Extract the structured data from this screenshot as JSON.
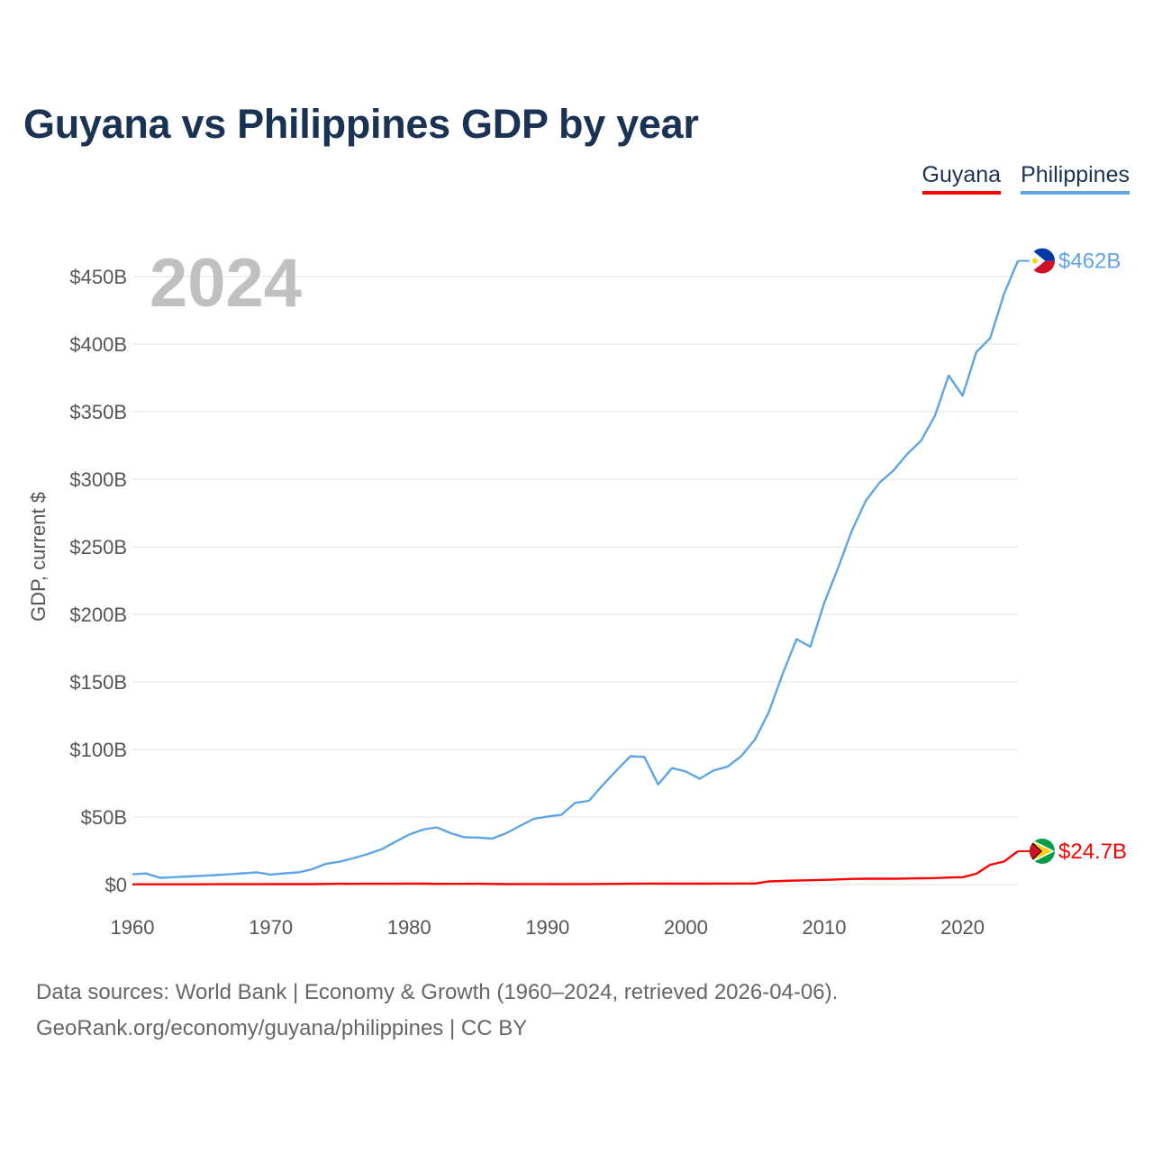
{
  "title": "Guyana vs Philippines GDP by year",
  "legend": [
    {
      "label": "Guyana",
      "color": "#ff0000"
    },
    {
      "label": "Philippines",
      "color": "#5ea4e6"
    }
  ],
  "source": {
    "line1": "Data sources: World Bank | Economy & Growth (1960–2024, retrieved 2026-04-06).",
    "line2": "GeoRank.org/economy/guyana/philippines | CC BY"
  },
  "chart_data": {
    "type": "line",
    "title": "Guyana vs Philippines GDP by year",
    "ylabel": "GDP, current $",
    "xlabel": "",
    "year_label": "2024",
    "xlim": [
      1960,
      2024
    ],
    "ylim": [
      0,
      450
    ],
    "x_ticks": [
      1960,
      1970,
      1980,
      1990,
      2000,
      2010,
      2020
    ],
    "y_ticks": [
      {
        "value": 0,
        "label": "$0"
      },
      {
        "value": 50,
        "label": "$50B"
      },
      {
        "value": 100,
        "label": "$100B"
      },
      {
        "value": 150,
        "label": "$150B"
      },
      {
        "value": 200,
        "label": "$200B"
      },
      {
        "value": 250,
        "label": "$250B"
      },
      {
        "value": 300,
        "label": "$300B"
      },
      {
        "value": 350,
        "label": "$350B"
      },
      {
        "value": 400,
        "label": "$400B"
      },
      {
        "value": 450,
        "label": "$450B"
      }
    ],
    "unit": "billions of current US$",
    "series": [
      {
        "name": "Philippines",
        "color": "#5ea4e6",
        "end_label": "$462B",
        "flag": "philippines",
        "x": [
          1960,
          1961,
          1962,
          1963,
          1964,
          1965,
          1966,
          1967,
          1968,
          1969,
          1970,
          1971,
          1972,
          1973,
          1974,
          1975,
          1976,
          1977,
          1978,
          1979,
          1980,
          1981,
          1982,
          1983,
          1984,
          1985,
          1986,
          1987,
          1988,
          1989,
          1990,
          1991,
          1992,
          1993,
          1994,
          1995,
          1996,
          1997,
          1998,
          1999,
          2000,
          2001,
          2002,
          2003,
          2004,
          2005,
          2006,
          2007,
          2008,
          2009,
          2010,
          2011,
          2012,
          2013,
          2014,
          2015,
          2016,
          2017,
          2018,
          2019,
          2020,
          2021,
          2022,
          2023,
          2024
        ],
        "values": [
          7.6,
          8.2,
          5.0,
          5.5,
          6.0,
          6.5,
          7.0,
          7.6,
          8.3,
          9.1,
          7.4,
          8.3,
          9.0,
          11.4,
          15.4,
          16.9,
          19.6,
          22.6,
          26.1,
          31.6,
          37.0,
          40.7,
          42.3,
          38.0,
          35.0,
          34.8,
          34.0,
          37.9,
          43.3,
          48.6,
          50.3,
          51.6,
          60.5,
          62.0,
          73.7,
          84.6,
          95.0,
          94.5,
          74.1,
          86.2,
          83.7,
          78.3,
          84.4,
          87.2,
          95.0,
          107.4,
          127.7,
          155.9,
          181.7,
          176.1,
          208.4,
          234.2,
          261.9,
          283.9,
          297.5,
          306.4,
          318.6,
          328.5,
          346.8,
          376.8,
          361.8,
          394.1,
          404.4,
          437.1,
          461.6
        ]
      },
      {
        "name": "Guyana",
        "color": "#ff0000",
        "end_label": "$24.7B",
        "flag": "guyana",
        "x": [
          1960,
          1961,
          1962,
          1963,
          1964,
          1965,
          1966,
          1967,
          1968,
          1969,
          1970,
          1971,
          1972,
          1973,
          1974,
          1975,
          1976,
          1977,
          1978,
          1979,
          1980,
          1981,
          1982,
          1983,
          1984,
          1985,
          1986,
          1987,
          1988,
          1989,
          1990,
          1991,
          1992,
          1993,
          1994,
          1995,
          1996,
          1997,
          1998,
          1999,
          2000,
          2001,
          2002,
          2003,
          2004,
          2005,
          2006,
          2007,
          2008,
          2009,
          2010,
          2011,
          2012,
          2013,
          2014,
          2015,
          2016,
          2017,
          2018,
          2019,
          2020,
          2021,
          2022,
          2023,
          2024
        ],
        "values": [
          0.17,
          0.19,
          0.2,
          0.19,
          0.21,
          0.23,
          0.24,
          0.26,
          0.27,
          0.28,
          0.3,
          0.32,
          0.33,
          0.35,
          0.49,
          0.6,
          0.56,
          0.57,
          0.6,
          0.62,
          0.72,
          0.65,
          0.54,
          0.56,
          0.54,
          0.59,
          0.5,
          0.35,
          0.4,
          0.37,
          0.4,
          0.32,
          0.37,
          0.43,
          0.49,
          0.56,
          0.63,
          0.75,
          0.72,
          0.69,
          0.71,
          0.7,
          0.73,
          0.74,
          0.79,
          0.82,
          2.3,
          2.7,
          3.0,
          3.2,
          3.5,
          3.8,
          4.2,
          4.3,
          4.3,
          4.3,
          4.5,
          4.7,
          4.8,
          5.2,
          5.5,
          8.0,
          14.7,
          17.0,
          24.7
        ]
      }
    ]
  }
}
